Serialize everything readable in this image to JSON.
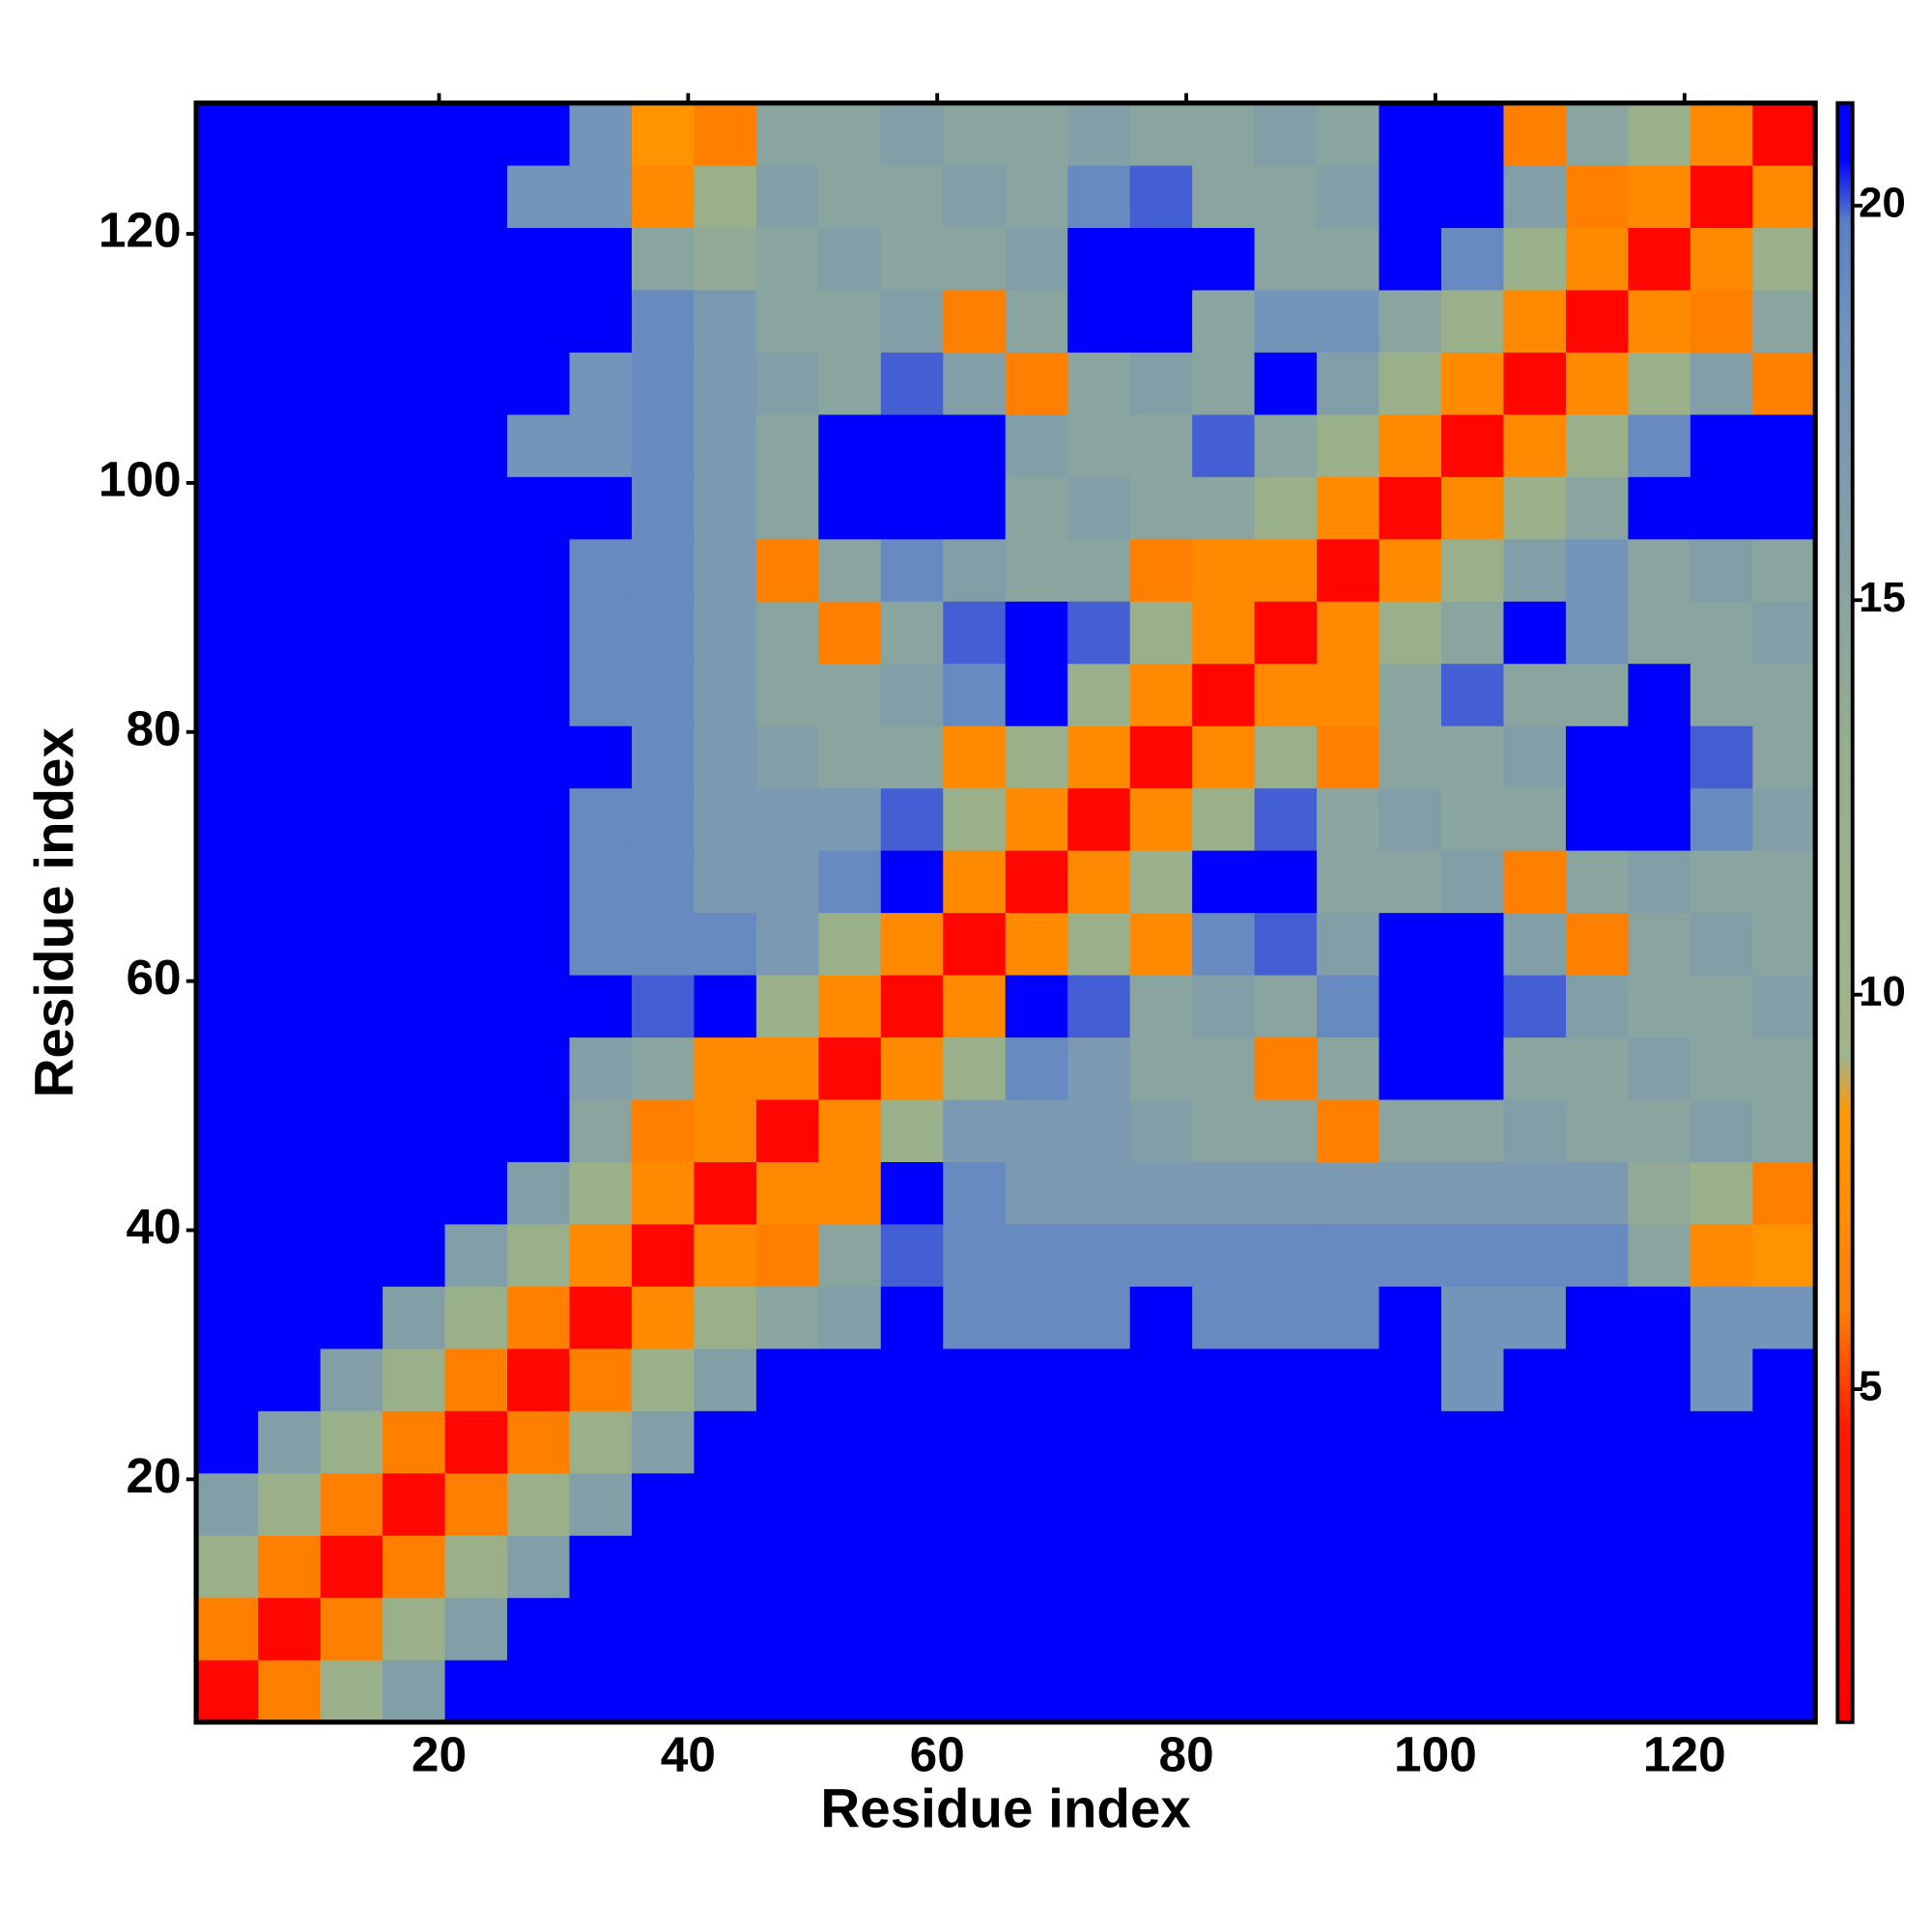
{
  "chart_data": {
    "type": "heatmap",
    "xlabel": "Residue index",
    "ylabel": "Residue index",
    "xlim": [
      0.5,
      130.5
    ],
    "ylim": [
      0.5,
      130.5
    ],
    "xticks": [
      20,
      40,
      60,
      80,
      100,
      120
    ],
    "yticks": [
      20,
      40,
      60,
      80,
      100,
      120
    ],
    "xbins": [
      0.5,
      5.5,
      10.5,
      15.5,
      20.5,
      25.5,
      30.5,
      35.5,
      40.5,
      45.5,
      50.5,
      55.5,
      60.5,
      65.5,
      70.5,
      75.5,
      80.5,
      85.5,
      90.5,
      95.5,
      100.5,
      105.5,
      110.5,
      115.5,
      120.5,
      125.5,
      130.5
    ],
    "ybins": [
      0.5,
      5.5,
      10.5,
      15.5,
      20.5,
      25.5,
      30.5,
      35.5,
      40.5,
      45.5,
      50.5,
      55.5,
      60.5,
      65.5,
      70.5,
      75.5,
      80.5,
      85.5,
      90.5,
      95.5,
      100.5,
      105.5,
      110.5,
      115.5,
      120.5,
      125.5,
      130.5
    ],
    "clim": [
      0.78,
      21.3
    ],
    "cticks": [
      5,
      10,
      15,
      20
    ],
    "colorscale": [
      [
        1,
        "#ff0000"
      ],
      [
        4.5,
        "#ff1a00"
      ],
      [
        6,
        "#ff8000"
      ],
      [
        8.5,
        "#ff9900"
      ],
      [
        9.2,
        "#a3b58a"
      ],
      [
        13,
        "#97ae8c"
      ],
      [
        15,
        "#8aa4a0"
      ],
      [
        18.5,
        "#6f93bd"
      ],
      [
        19.8,
        "#5a7fc4"
      ],
      [
        20.6,
        "#0000ff"
      ]
    ],
    "values": [
      [
        2,
        6,
        12,
        16,
        21,
        21,
        21,
        21,
        21,
        21,
        21,
        21,
        21,
        21,
        21,
        21,
        21,
        21,
        21,
        21,
        21,
        21,
        21,
        21,
        21,
        21
      ],
      [
        6,
        2,
        6,
        12,
        16,
        21,
        21,
        21,
        21,
        21,
        21,
        21,
        21,
        21,
        21,
        21,
        21,
        21,
        21,
        21,
        21,
        21,
        21,
        21,
        21,
        21
      ],
      [
        12,
        6,
        2,
        6,
        12,
        16,
        21,
        21,
        21,
        21,
        21,
        21,
        21,
        21,
        21,
        21,
        21,
        21,
        21,
        21,
        21,
        21,
        21,
        21,
        21,
        21
      ],
      [
        16,
        12,
        6,
        2,
        6,
        12,
        16,
        21,
        21,
        21,
        21,
        21,
        21,
        21,
        21,
        21,
        21,
        21,
        21,
        21,
        21,
        21,
        21,
        21,
        21,
        21
      ],
      [
        21,
        16,
        12,
        6,
        2,
        6,
        12,
        16,
        21,
        21,
        21,
        21,
        21,
        21,
        21,
        21,
        21,
        21,
        21,
        21,
        21,
        21,
        21,
        21,
        21,
        21
      ],
      [
        21,
        21,
        16,
        12,
        6,
        2,
        6,
        12,
        16,
        21,
        21,
        21,
        21,
        21,
        21,
        21,
        21,
        21,
        21,
        21,
        18,
        21,
        21,
        21,
        18,
        21
      ],
      [
        21,
        21,
        21,
        16,
        12,
        6,
        2,
        7,
        12,
        15,
        16,
        21,
        19,
        19,
        19,
        21,
        19,
        19,
        19,
        21,
        18,
        18,
        21,
        21,
        18,
        18
      ],
      [
        21,
        21,
        21,
        21,
        16,
        12,
        7,
        2,
        7,
        6,
        15,
        20,
        19,
        19,
        19,
        19,
        19,
        19,
        19,
        19,
        19,
        19,
        19,
        15,
        7,
        8
      ],
      [
        21,
        21,
        21,
        21,
        21,
        16,
        12,
        7,
        2,
        7,
        7,
        21,
        19,
        17,
        17,
        17,
        17,
        17,
        17,
        17,
        17,
        17,
        17,
        14,
        12,
        6
      ],
      [
        21,
        21,
        21,
        21,
        21,
        21,
        15,
        6,
        7,
        2,
        7,
        12,
        17,
        17,
        17,
        16,
        15,
        15,
        6,
        15,
        15,
        16,
        15,
        15,
        16,
        15
      ],
      [
        21,
        21,
        21,
        21,
        21,
        21,
        16,
        15,
        7,
        7,
        2,
        7,
        12,
        19,
        17,
        15,
        15,
        6,
        15,
        21,
        21,
        15,
        15,
        16,
        15,
        15
      ],
      [
        21,
        21,
        21,
        21,
        21,
        21,
        21,
        20,
        21,
        12,
        7,
        2,
        7,
        21,
        20,
        15,
        16,
        15,
        19,
        21,
        21,
        20,
        16,
        15,
        15,
        16
      ],
      [
        21,
        21,
        21,
        21,
        21,
        21,
        19,
        19,
        19,
        17,
        12,
        7,
        2,
        7,
        12,
        7,
        19,
        20,
        16,
        21,
        21,
        16,
        6,
        15,
        16,
        15
      ],
      [
        21,
        21,
        21,
        21,
        21,
        21,
        19,
        19,
        17,
        17,
        19,
        21,
        7,
        2,
        7,
        12,
        21,
        21,
        15,
        15,
        16,
        6,
        15,
        16,
        15,
        15
      ],
      [
        21,
        21,
        21,
        21,
        21,
        21,
        19,
        19,
        17,
        17,
        17,
        20,
        12,
        7,
        2,
        7,
        12,
        20,
        15,
        16,
        15,
        15,
        21,
        21,
        19,
        16
      ],
      [
        21,
        21,
        21,
        21,
        21,
        21,
        21,
        19,
        17,
        16,
        15,
        15,
        7,
        12,
        7,
        2,
        7,
        12,
        6,
        15,
        15,
        16,
        21,
        21,
        20,
        15
      ],
      [
        21,
        21,
        21,
        21,
        21,
        21,
        19,
        19,
        17,
        15,
        15,
        16,
        19,
        21,
        12,
        7,
        2,
        7,
        7,
        15,
        20,
        15,
        15,
        21,
        15,
        15
      ],
      [
        21,
        21,
        21,
        21,
        21,
        21,
        19,
        19,
        17,
        15,
        6,
        15,
        20,
        21,
        20,
        12,
        7,
        2,
        7,
        12,
        15,
        21,
        18,
        15,
        15,
        16
      ],
      [
        21,
        21,
        21,
        21,
        21,
        21,
        19,
        19,
        17,
        6,
        15,
        19,
        16,
        15,
        15,
        6,
        7,
        7,
        2,
        7,
        12,
        16,
        18,
        15,
        16,
        15
      ],
      [
        21,
        21,
        21,
        21,
        21,
        21,
        21,
        19,
        17,
        15,
        21,
        21,
        21,
        15,
        16,
        15,
        15,
        12,
        7,
        2,
        7,
        12,
        15,
        21,
        21,
        21
      ],
      [
        21,
        21,
        21,
        21,
        21,
        18,
        18,
        19,
        17,
        15,
        21,
        21,
        21,
        16,
        15,
        15,
        20,
        15,
        12,
        7,
        2,
        7,
        12,
        19,
        21,
        21
      ],
      [
        21,
        21,
        21,
        21,
        21,
        21,
        18,
        19,
        17,
        16,
        15,
        20,
        16,
        6,
        15,
        16,
        15,
        21,
        16,
        12,
        7,
        2,
        7,
        12,
        16,
        6
      ],
      [
        21,
        21,
        21,
        21,
        21,
        21,
        21,
        19,
        17,
        15,
        15,
        16,
        6,
        15,
        21,
        21,
        15,
        18,
        18,
        15,
        12,
        7,
        2,
        7,
        6,
        15
      ],
      [
        21,
        21,
        21,
        21,
        21,
        21,
        21,
        15,
        14,
        15,
        16,
        15,
        15,
        16,
        21,
        21,
        21,
        15,
        15,
        21,
        19,
        12,
        7,
        2,
        7,
        12
      ],
      [
        21,
        21,
        21,
        21,
        21,
        18,
        18,
        7,
        12,
        16,
        15,
        15,
        16,
        15,
        19,
        20,
        15,
        15,
        16,
        21,
        21,
        16,
        6,
        7,
        2,
        7
      ],
      [
        21,
        21,
        21,
        21,
        21,
        21,
        18,
        8,
        6,
        15,
        15,
        16,
        15,
        15,
        16,
        15,
        15,
        16,
        15,
        21,
        21,
        6,
        15,
        12,
        7,
        2
      ]
    ]
  }
}
